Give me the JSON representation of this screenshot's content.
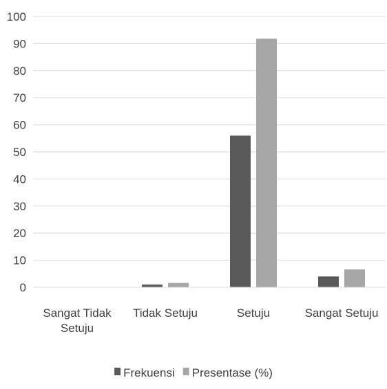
{
  "chart_data": {
    "type": "bar",
    "categories": [
      [
        "Sangat Tidak",
        "Setuju"
      ],
      [
        "Tidak Setuju"
      ],
      [
        "Setuju"
      ],
      [
        "Sangat Setuju"
      ]
    ],
    "series": [
      {
        "name": "Frekuensi",
        "color": "#595959",
        "values": [
          0,
          1,
          56,
          4
        ]
      },
      {
        "name": "Presentase (%)",
        "color": "#a6a6a6",
        "values": [
          0,
          1.6,
          91.8,
          6.6
        ]
      }
    ],
    "ylim": [
      0,
      100
    ],
    "yticks": [
      0,
      10,
      20,
      30,
      40,
      50,
      60,
      70,
      80,
      90,
      100
    ],
    "grid": true,
    "legend_position": "bottom",
    "title": "",
    "xlabel": "",
    "ylabel": ""
  }
}
